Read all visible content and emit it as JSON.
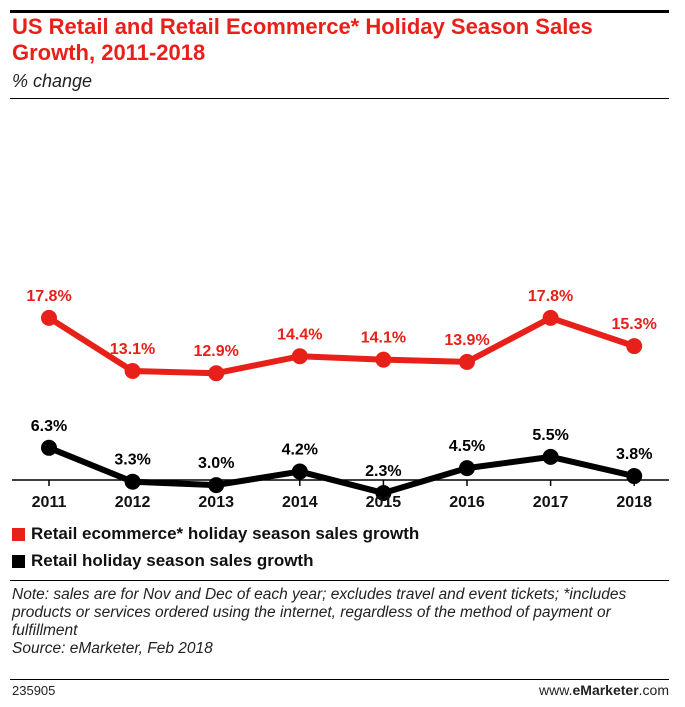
{
  "header": {
    "title": "US Retail and Retail Ecommerce* Holiday Season Sales Growth, 2011-2018",
    "subtitle": "% change"
  },
  "colors": {
    "ecommerce": "#e8201a",
    "retail": "#000000",
    "title": "#e8201a"
  },
  "chart_data": {
    "type": "line",
    "title": "US Retail and Retail Ecommerce* Holiday Season Sales Growth, 2011-2018",
    "subtitle": "% change",
    "x": [
      "2011",
      "2012",
      "2013",
      "2014",
      "2015",
      "2016",
      "2017",
      "2018"
    ],
    "series": [
      {
        "name": "Retail ecommerce* holiday season sales growth",
        "color": "#e8201a",
        "values": [
          17.8,
          13.1,
          12.9,
          14.4,
          14.1,
          13.9,
          17.8,
          15.3
        ],
        "labels": [
          "17.8%",
          "13.1%",
          "12.9%",
          "14.4%",
          "14.1%",
          "13.9%",
          "17.8%",
          "15.3%"
        ]
      },
      {
        "name": "Retail holiday season sales growth",
        "color": "#000000",
        "values": [
          6.3,
          3.3,
          3.0,
          4.2,
          2.3,
          4.5,
          5.5,
          3.8
        ],
        "labels": [
          "6.3%",
          "3.3%",
          "3.0%",
          "4.2%",
          "2.3%",
          "4.5%",
          "5.5%",
          "3.8%"
        ]
      }
    ],
    "ylim": [
      0,
      20
    ],
    "grid": false,
    "legend": "bottom-left"
  },
  "legend": {
    "ecommerce": "Retail ecommerce* holiday season sales growth",
    "retail": "Retail holiday season sales growth"
  },
  "note": {
    "text": "Note: sales are for Nov and Dec of each year; excludes travel and event tickets; *includes products or services ordered using the internet, regardless of the method of payment or fulfillment",
    "source": "Source: eMarketer, Feb 2018"
  },
  "footer": {
    "id": "235905",
    "brand_prefix": "www.",
    "brand_name": "eMarketer",
    "brand_suffix": ".com"
  }
}
